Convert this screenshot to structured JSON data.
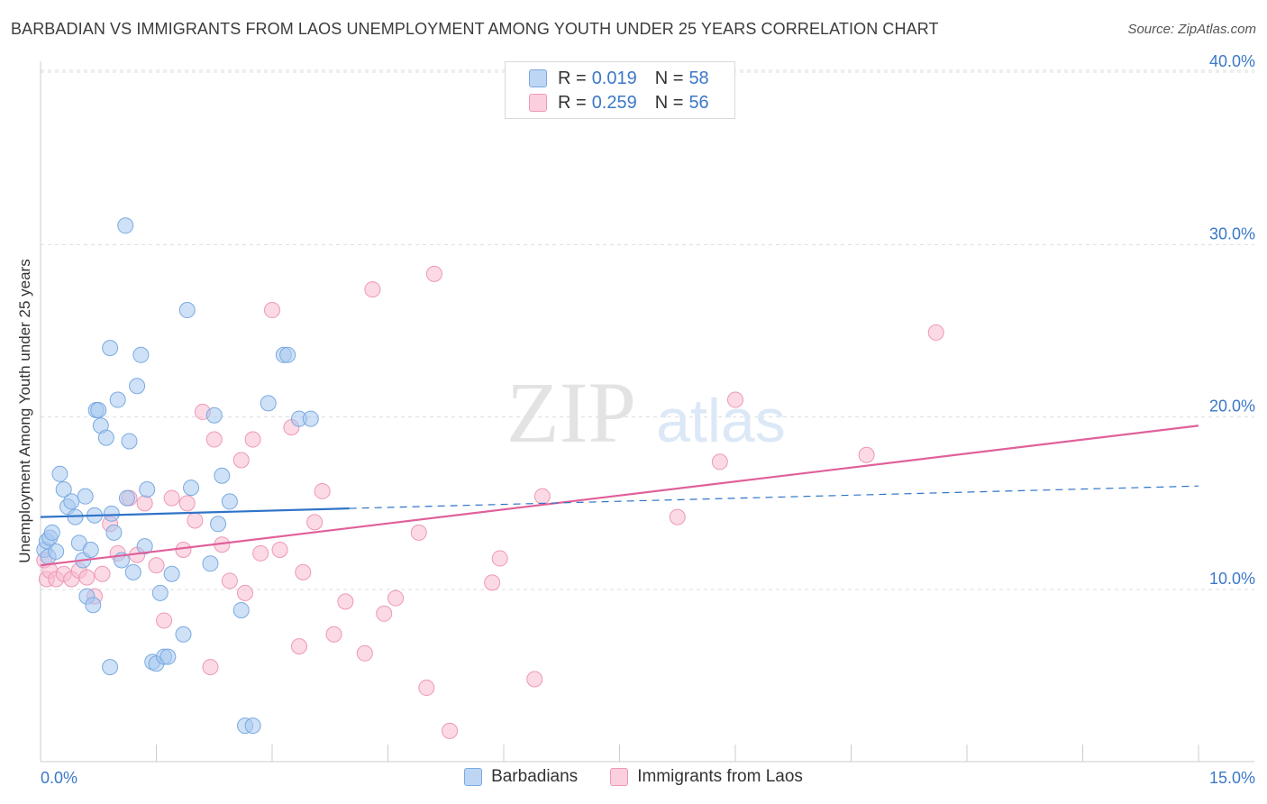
{
  "header": {
    "title": "BARBADIAN VS IMMIGRANTS FROM LAOS UNEMPLOYMENT AMONG YOUTH UNDER 25 YEARS CORRELATION CHART",
    "source": "Source: ZipAtlas.com"
  },
  "watermark": {
    "zip": "ZIP",
    "atlas": "atlas"
  },
  "legend_top": [
    {
      "r_label": "R =",
      "r_value": "0.019",
      "n_label": "N =",
      "n_value": "58"
    },
    {
      "r_label": "R =",
      "r_value": "0.259",
      "n_label": "N =",
      "n_value": "56"
    }
  ],
  "chart_data": {
    "type": "scatter",
    "title": "BARBADIAN VS IMMIGRANTS FROM LAOS UNEMPLOYMENT AMONG YOUTH UNDER 25 YEARS CORRELATION CHART",
    "xlabel": "",
    "ylabel": "Unemployment Among Youth under 25 years",
    "xlim": [
      0,
      15
    ],
    "ylim": [
      0,
      42
    ],
    "x_tick_labels": [
      "0.0%",
      "15.0%"
    ],
    "y_ticks": [
      10,
      20,
      30,
      40
    ],
    "y_tick_labels": [
      "10.0%",
      "20.0%",
      "30.0%",
      "40.0%"
    ],
    "grid": true,
    "legend_position": "bottom",
    "colors": {
      "barbadians_fill": "#a8c8f0",
      "barbadians_stroke": "#7aaae0",
      "barbadians_line": "#2f74c8",
      "laos_fill": "#f8bcd0",
      "laos_stroke": "#ee98b6",
      "laos_line": "#e0609a",
      "tick_label": "#3c78c8"
    },
    "series": [
      {
        "name": "Barbadians",
        "r": 0.019,
        "n": 58,
        "trend": {
          "x": [
            0,
            4.0
          ],
          "y": [
            14.2,
            14.7
          ]
        },
        "trend_dashed": {
          "x": [
            4.0,
            15.0
          ],
          "y": [
            14.7,
            16.0
          ]
        },
        "points": [
          [
            0.05,
            12.3
          ],
          [
            0.08,
            12.8
          ],
          [
            0.1,
            11.9
          ],
          [
            0.12,
            13.0
          ],
          [
            0.15,
            13.3
          ],
          [
            0.2,
            12.2
          ],
          [
            0.25,
            16.7
          ],
          [
            0.3,
            15.8
          ],
          [
            0.35,
            14.8
          ],
          [
            0.4,
            15.1
          ],
          [
            0.45,
            14.2
          ],
          [
            0.5,
            12.7
          ],
          [
            0.55,
            11.7
          ],
          [
            0.58,
            15.4
          ],
          [
            0.6,
            9.6
          ],
          [
            0.65,
            12.3
          ],
          [
            0.68,
            9.1
          ],
          [
            0.7,
            14.3
          ],
          [
            0.72,
            20.4
          ],
          [
            0.75,
            20.4
          ],
          [
            0.78,
            19.5
          ],
          [
            0.85,
            18.8
          ],
          [
            0.9,
            24.0
          ],
          [
            0.92,
            14.4
          ],
          [
            0.95,
            13.3
          ],
          [
            1.0,
            21.0
          ],
          [
            1.05,
            11.7
          ],
          [
            1.1,
            31.1
          ],
          [
            1.12,
            15.3
          ],
          [
            1.15,
            18.6
          ],
          [
            1.2,
            11.0
          ],
          [
            1.25,
            21.8
          ],
          [
            1.3,
            23.6
          ],
          [
            1.35,
            12.5
          ],
          [
            1.38,
            15.8
          ],
          [
            1.45,
            5.8
          ],
          [
            1.5,
            5.7
          ],
          [
            1.55,
            9.8
          ],
          [
            1.6,
            6.1
          ],
          [
            1.65,
            6.1
          ],
          [
            1.7,
            10.9
          ],
          [
            1.85,
            7.4
          ],
          [
            1.9,
            26.2
          ],
          [
            1.95,
            15.9
          ],
          [
            2.2,
            11.5
          ],
          [
            2.25,
            20.1
          ],
          [
            2.3,
            13.8
          ],
          [
            2.35,
            16.6
          ],
          [
            2.45,
            15.1
          ],
          [
            2.6,
            8.8
          ],
          [
            2.65,
            2.1
          ],
          [
            2.75,
            2.1
          ],
          [
            2.95,
            20.8
          ],
          [
            3.15,
            23.6
          ],
          [
            3.2,
            23.6
          ],
          [
            3.35,
            19.9
          ],
          [
            3.5,
            19.9
          ],
          [
            0.9,
            5.5
          ]
        ]
      },
      {
        "name": "Immigrants from Laos",
        "r": 0.259,
        "n": 56,
        "trend": {
          "x": [
            0,
            15.0
          ],
          "y": [
            11.4,
            19.5
          ]
        },
        "points": [
          [
            0.05,
            11.7
          ],
          [
            0.08,
            10.6
          ],
          [
            0.12,
            11.1
          ],
          [
            0.2,
            10.6
          ],
          [
            0.3,
            10.9
          ],
          [
            0.4,
            10.6
          ],
          [
            0.5,
            11.1
          ],
          [
            0.6,
            10.7
          ],
          [
            0.7,
            9.6
          ],
          [
            0.8,
            10.9
          ],
          [
            0.9,
            13.8
          ],
          [
            1.0,
            12.1
          ],
          [
            1.15,
            15.3
          ],
          [
            1.25,
            12.0
          ],
          [
            1.35,
            15.0
          ],
          [
            1.5,
            11.4
          ],
          [
            1.6,
            8.2
          ],
          [
            1.7,
            15.3
          ],
          [
            1.85,
            12.3
          ],
          [
            1.9,
            15.0
          ],
          [
            2.0,
            14.0
          ],
          [
            2.1,
            20.3
          ],
          [
            2.2,
            5.5
          ],
          [
            2.25,
            18.7
          ],
          [
            2.35,
            12.6
          ],
          [
            2.45,
            10.5
          ],
          [
            2.6,
            17.5
          ],
          [
            2.65,
            9.8
          ],
          [
            2.75,
            18.7
          ],
          [
            2.85,
            12.1
          ],
          [
            3.0,
            26.2
          ],
          [
            3.1,
            12.3
          ],
          [
            3.25,
            19.4
          ],
          [
            3.35,
            6.7
          ],
          [
            3.4,
            11.0
          ],
          [
            3.55,
            13.9
          ],
          [
            3.65,
            15.7
          ],
          [
            3.8,
            7.4
          ],
          [
            3.95,
            9.3
          ],
          [
            4.2,
            6.3
          ],
          [
            4.3,
            27.4
          ],
          [
            4.45,
            8.6
          ],
          [
            4.6,
            9.5
          ],
          [
            4.9,
            13.3
          ],
          [
            5.0,
            4.3
          ],
          [
            5.1,
            28.3
          ],
          [
            5.3,
            1.8
          ],
          [
            5.85,
            10.4
          ],
          [
            5.95,
            11.8
          ],
          [
            6.4,
            4.8
          ],
          [
            6.5,
            15.4
          ],
          [
            8.25,
            14.2
          ],
          [
            8.8,
            17.4
          ],
          [
            9.0,
            21.0
          ],
          [
            10.7,
            17.8
          ],
          [
            11.6,
            24.9
          ]
        ]
      }
    ]
  },
  "legend_bottom": [
    "Barbadians",
    "Immigrants from Laos"
  ]
}
